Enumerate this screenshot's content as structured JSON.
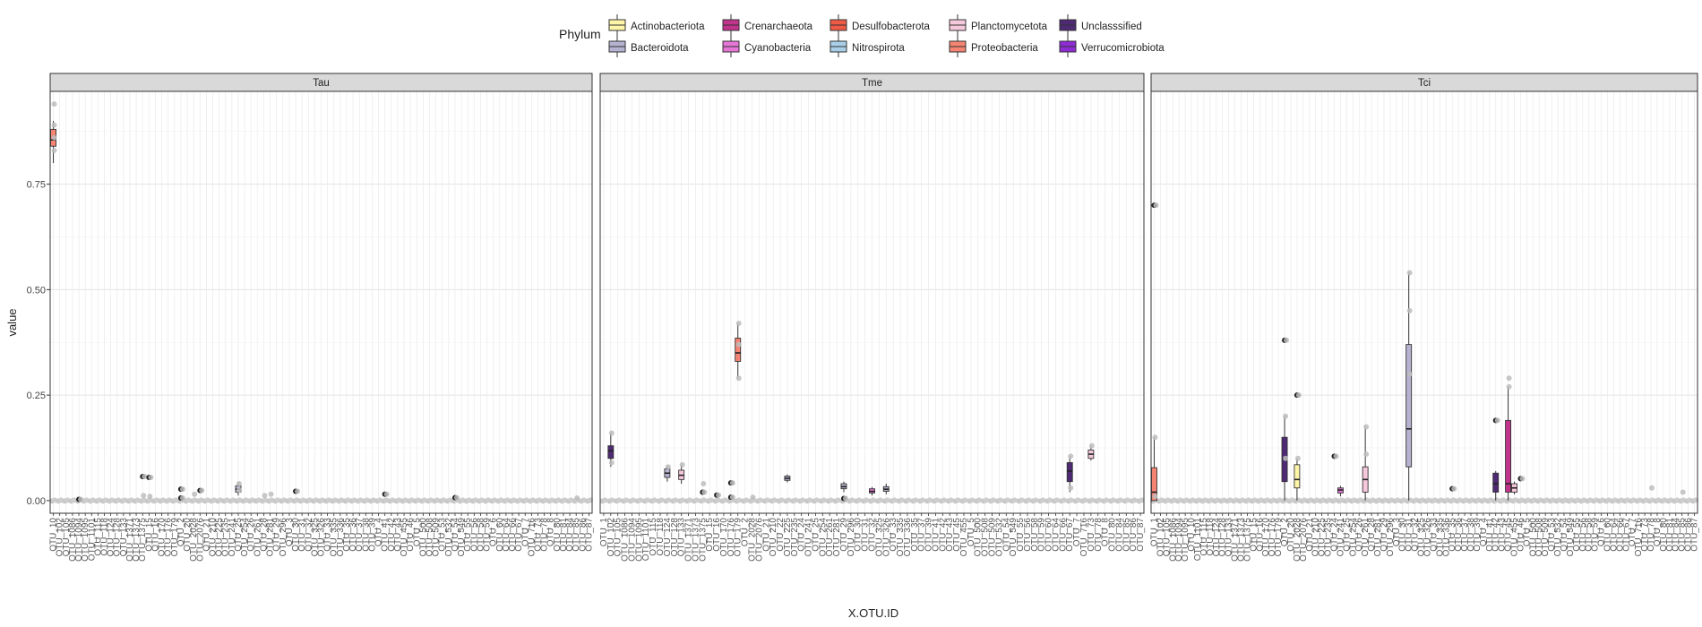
{
  "chart_data": {
    "type": "boxplot",
    "title": "",
    "xlabel": "X.OTU.ID",
    "ylabel": "value",
    "ylim": [
      -0.03,
      0.97
    ],
    "y_ticks": [
      0.0,
      0.25,
      0.5,
      0.75
    ],
    "y_tick_labels": [
      "0.00",
      "0.25",
      "0.50",
      "0.75"
    ],
    "grid": true,
    "legend": {
      "title": "Phylum",
      "placement": "top",
      "entries": [
        {
          "name": "Actinobacteriota",
          "color": "#FFF5A8"
        },
        {
          "name": "Bacteroidota",
          "color": "#B5B3D0"
        },
        {
          "name": "Crenarchaeota",
          "color": "#C2338C"
        },
        {
          "name": "Cyanobacteria",
          "color": "#E576D5"
        },
        {
          "name": "Desulfobacterota",
          "color": "#EE5A45"
        },
        {
          "name": "Nitrospirota",
          "color": "#A9CFE8"
        },
        {
          "name": "Planctomycetota",
          "color": "#F6C8DC"
        },
        {
          "name": "Proteobacteria",
          "color": "#F58473"
        },
        {
          "name": "Unclasssified",
          "color": "#4E2A74"
        },
        {
          "name": "Verrucomicrobiota",
          "color": "#8E2BD4"
        }
      ]
    },
    "panels": [
      {
        "label": "Tau",
        "tick_labels": [
          "OTU_10",
          "OTU_102",
          "OTU_105",
          "OTU_1086",
          "OTU_1094",
          "OTU_1095",
          "OTU_1101",
          "OTU_115",
          "OTU_118",
          "OTU_124",
          "OTU_128",
          "OTU_133",
          "OTU_1371",
          "OTU_1373",
          "OTU_1375",
          "OTU_15",
          "OTU_16",
          "OTU_170",
          "OTU_176",
          "OTU_179",
          "OTU_2",
          "OTU_20",
          "OTU_2028",
          "OTU_2076",
          "OTU_21",
          "OTU_210",
          "OTU_225",
          "OTU_235",
          "OTU_241",
          "OTU_25",
          "OTU_254",
          "OTU_26",
          "OTU_261",
          "OTU_28",
          "OTU_281",
          "OTU_29",
          "OTU_296",
          "OTU_3",
          "OTU_30",
          "OTU_31",
          "OTU_32",
          "OTU_325",
          "OTU_326",
          "OTU_33",
          "OTU_335",
          "OTU_336",
          "OTU_35",
          "OTU_36",
          "OTU_37",
          "OTU_38",
          "OTU_39",
          "OTU_4",
          "OTU_41",
          "OTU_42",
          "OTU_43",
          "OTU_455",
          "OTU_46",
          "OTU_5",
          "OTU_500",
          "OTU_508",
          "OTU_509",
          "OTU_53",
          "OTU_532",
          "OTU_54",
          "OTU_549",
          "OTU_55",
          "OTU_56",
          "OTU_58",
          "OTU_59",
          "OTU_6",
          "OTU_60",
          "OTU_64",
          "OTU_66",
          "OTU_67",
          "OTU_7",
          "OTU_716",
          "OTU_73",
          "OTU_78",
          "OTU_8",
          "OTU_80",
          "OTU_81",
          "OTU_84",
          "OTU_85",
          "OTU_86",
          "OTU_87"
        ],
        "boxes": [
          {
            "index": 0,
            "phylum": "Proteobacteria",
            "q1": 0.84,
            "median": 0.855,
            "q3": 0.88,
            "whisker_low": 0.8,
            "whisker_high": 0.9
          },
          {
            "index": 29,
            "phylum": "Bacteroidota",
            "q1": 0.02,
            "median": 0.027,
            "q3": 0.035,
            "whisker_low": 0.012,
            "whisker_high": 0.045
          }
        ],
        "points": [
          {
            "index": 0,
            "value": 0.94,
            "outlier": false
          },
          {
            "index": 0,
            "value": 0.86,
            "outlier": false
          },
          {
            "index": 0,
            "value": 0.83,
            "outlier": false
          },
          {
            "index": 0,
            "value": 0.89,
            "outlier": false
          },
          {
            "index": 4,
            "value": 0.003,
            "outlier": true
          },
          {
            "index": 14,
            "value": 0.057,
            "outlier": true
          },
          {
            "index": 14,
            "value": 0.012,
            "outlier": false
          },
          {
            "index": 15,
            "value": 0.055,
            "outlier": true
          },
          {
            "index": 15,
            "value": 0.01,
            "outlier": false
          },
          {
            "index": 20,
            "value": 0.027,
            "outlier": true
          },
          {
            "index": 20,
            "value": 0.006,
            "outlier": true
          },
          {
            "index": 22,
            "value": 0.015,
            "outlier": false
          },
          {
            "index": 23,
            "value": 0.024,
            "outlier": true
          },
          {
            "index": 29,
            "value": 0.04,
            "outlier": false
          },
          {
            "index": 29,
            "value": 0.025,
            "outlier": false
          },
          {
            "index": 33,
            "value": 0.012,
            "outlier": false
          },
          {
            "index": 34,
            "value": 0.015,
            "outlier": false
          },
          {
            "index": 38,
            "value": 0.022,
            "outlier": true
          },
          {
            "index": 52,
            "value": 0.015,
            "outlier": true
          },
          {
            "index": 63,
            "value": 0.007,
            "outlier": true
          },
          {
            "index": 82,
            "value": 0.006,
            "outlier": false
          }
        ]
      },
      {
        "label": "Tme",
        "tick_labels": [
          "OTU_1",
          "OTU_102",
          "OTU_105",
          "OTU_1086",
          "OTU_1094",
          "OTU_1095",
          "OTU_1101",
          "OTU_115",
          "OTU_118",
          "OTU_124",
          "OTU_128",
          "OTU_133",
          "OTU_1371",
          "OTU_1373",
          "OTU_1375",
          "OTU_15",
          "OTU_16",
          "OTU_170",
          "OTU_176",
          "OTU_179",
          "OTU_2",
          "OTU_2028",
          "OTU_2076",
          "OTU_21",
          "OTU_210",
          "OTU_22",
          "OTU_225",
          "OTU_235",
          "OTU_24",
          "OTU_241",
          "OTU_25",
          "OTU_254",
          "OTU_261",
          "OTU_281",
          "OTU_29",
          "OTU_296",
          "OTU_30",
          "OTU_31",
          "OTU_32",
          "OTU_325",
          "OTU_326",
          "OTU_33",
          "OTU_335",
          "OTU_336",
          "OTU_35",
          "OTU_37",
          "OTU_39",
          "OTU_41",
          "OTU_42",
          "OTU_43",
          "OTU_45",
          "OTU_455",
          "OTU_5",
          "OTU_500",
          "OTU_508",
          "OTU_509",
          "OTU_532",
          "OTU_54",
          "OTU_549",
          "OTU_55",
          "OTU_56",
          "OTU_58",
          "OTU_59",
          "OTU_60",
          "OTU_64",
          "OTU_66",
          "OTU_67",
          "OTU_7",
          "OTU_716",
          "OTU_73",
          "OTU_78",
          "OTU_8",
          "OTU_80",
          "OTU_84",
          "OTU_85",
          "OTU_86",
          "OTU_87"
        ],
        "boxes": [
          {
            "index": 1,
            "phylum": "Unclasssified",
            "q1": 0.1,
            "median": 0.118,
            "q3": 0.13,
            "whisker_low": 0.08,
            "whisker_high": 0.16
          },
          {
            "index": 9,
            "phylum": "Bacteroidota",
            "q1": 0.055,
            "median": 0.065,
            "q3": 0.075,
            "whisker_low": 0.045,
            "whisker_high": 0.082
          },
          {
            "index": 11,
            "phylum": "Planctomycetota",
            "q1": 0.05,
            "median": 0.06,
            "q3": 0.072,
            "whisker_low": 0.04,
            "whisker_high": 0.085
          },
          {
            "index": 19,
            "phylum": "Proteobacteria",
            "q1": 0.33,
            "median": 0.35,
            "q3": 0.385,
            "whisker_low": 0.29,
            "whisker_high": 0.42
          },
          {
            "index": 26,
            "phylum": "Bacteroidota",
            "q1": 0.048,
            "median": 0.053,
            "q3": 0.058,
            "whisker_low": 0.043,
            "whisker_high": 0.062
          },
          {
            "index": 34,
            "phylum": "Bacteroidota",
            "q1": 0.028,
            "median": 0.033,
            "q3": 0.04,
            "whisker_low": 0.02,
            "whisker_high": 0.045
          },
          {
            "index": 38,
            "phylum": "Cyanobacteria",
            "q1": 0.018,
            "median": 0.022,
            "q3": 0.028,
            "whisker_low": 0.012,
            "whisker_high": 0.032
          },
          {
            "index": 40,
            "phylum": "Bacteroidota",
            "q1": 0.022,
            "median": 0.027,
            "q3": 0.033,
            "whisker_low": 0.015,
            "whisker_high": 0.04
          },
          {
            "index": 66,
            "phylum": "Unclasssified",
            "q1": 0.045,
            "median": 0.07,
            "q3": 0.09,
            "whisker_low": 0.02,
            "whisker_high": 0.105
          },
          {
            "index": 69,
            "phylum": "Planctomycetota",
            "q1": 0.1,
            "median": 0.11,
            "q3": 0.12,
            "whisker_low": 0.095,
            "whisker_high": 0.13
          }
        ],
        "points": [
          {
            "index": 1,
            "value": 0.16,
            "outlier": false
          },
          {
            "index": 1,
            "value": 0.09,
            "outlier": false
          },
          {
            "index": 9,
            "value": 0.08,
            "outlier": false
          },
          {
            "index": 11,
            "value": 0.085,
            "outlier": false
          },
          {
            "index": 14,
            "value": 0.04,
            "outlier": false
          },
          {
            "index": 14,
            "value": 0.02,
            "outlier": true
          },
          {
            "index": 16,
            "value": 0.013,
            "outlier": true
          },
          {
            "index": 18,
            "value": 0.042,
            "outlier": true
          },
          {
            "index": 18,
            "value": 0.008,
            "outlier": true
          },
          {
            "index": 19,
            "value": 0.42,
            "outlier": false
          },
          {
            "index": 19,
            "value": 0.29,
            "outlier": false
          },
          {
            "index": 19,
            "value": 0.37,
            "outlier": false
          },
          {
            "index": 21,
            "value": 0.008,
            "outlier": false
          },
          {
            "index": 34,
            "value": 0.005,
            "outlier": true
          },
          {
            "index": 66,
            "value": 0.105,
            "outlier": false
          },
          {
            "index": 66,
            "value": 0.03,
            "outlier": false
          },
          {
            "index": 69,
            "value": 0.13,
            "outlier": false
          }
        ]
      },
      {
        "label": "Tci",
        "tick_labels": [
          "OTU_1",
          "OTU_102",
          "OTU_105",
          "OTU_1086",
          "OTU_1094",
          "OTU_1095",
          "OTU_10",
          "OTU_1101",
          "OTU_115",
          "OTU_118",
          "OTU_124",
          "OTU_128",
          "OTU_133",
          "OTU_1371",
          "OTU_1373",
          "OTU_1375",
          "OTU_15",
          "OTU_16",
          "OTU_170",
          "OTU_176",
          "OTU_179",
          "OTU_2",
          "OTU_20",
          "OTU_2028",
          "OTU_2076",
          "OTU_21",
          "OTU_210",
          "OTU_225",
          "OTU_235",
          "OTU_24",
          "OTU_241",
          "OTU_25",
          "OTU_254",
          "OTU_26",
          "OTU_261",
          "OTU_28",
          "OTU_281",
          "OTU_29",
          "OTU_296",
          "OTU_3",
          "OTU_30",
          "OTU_31",
          "OTU_32",
          "OTU_325",
          "OTU_326",
          "OTU_33",
          "OTU_335",
          "OTU_336",
          "OTU_35",
          "OTU_36",
          "OTU_37",
          "OTU_38",
          "OTU_39",
          "OTU_4",
          "OTU_41",
          "OTU_42",
          "OTU_43",
          "OTU_45",
          "OTU_455",
          "OTU_46",
          "OTU_5",
          "OTU_500",
          "OTU_508",
          "OTU_509",
          "OTU_53",
          "OTU_532",
          "OTU_54",
          "OTU_549",
          "OTU_55",
          "OTU_56",
          "OTU_58",
          "OTU_59",
          "OTU_6",
          "OTU_60",
          "OTU_64",
          "OTU_66",
          "OTU_67",
          "OTU_7",
          "OTU_716",
          "OTU_73",
          "OTU_78",
          "OTU_8",
          "OTU_80",
          "OTU_81",
          "OTU_84",
          "OTU_85",
          "OTU_86",
          "OTU_87"
        ],
        "boxes": [
          {
            "index": 0,
            "phylum": "Proteobacteria",
            "q1": 0.0,
            "median": 0.02,
            "q3": 0.078,
            "whisker_low": 0.0,
            "whisker_high": 0.15
          },
          {
            "index": 21,
            "phylum": "Unclasssified",
            "q1": 0.045,
            "median": 0.1,
            "q3": 0.15,
            "whisker_low": 0.0,
            "whisker_high": 0.2
          },
          {
            "index": 23,
            "phylum": "Actinobacteriota",
            "q1": 0.03,
            "median": 0.05,
            "q3": 0.085,
            "whisker_low": 0.0,
            "whisker_high": 0.1
          },
          {
            "index": 30,
            "phylum": "Cyanobacteria",
            "q1": 0.018,
            "median": 0.025,
            "q3": 0.03,
            "whisker_low": 0.01,
            "whisker_high": 0.035
          },
          {
            "index": 34,
            "phylum": "Planctomycetota",
            "q1": 0.02,
            "median": 0.05,
            "q3": 0.08,
            "whisker_low": 0.0,
            "whisker_high": 0.175
          },
          {
            "index": 41,
            "phylum": "Bacteroidota",
            "q1": 0.08,
            "median": 0.17,
            "q3": 0.37,
            "whisker_low": 0.0,
            "whisker_high": 0.54
          },
          {
            "index": 55,
            "phylum": "Unclasssified",
            "q1": 0.02,
            "median": 0.04,
            "q3": 0.065,
            "whisker_low": 0.0,
            "whisker_high": 0.07
          },
          {
            "index": 57,
            "phylum": "Crenarchaeota",
            "q1": 0.02,
            "median": 0.04,
            "q3": 0.19,
            "whisker_low": 0.0,
            "whisker_high": 0.27
          },
          {
            "index": 58,
            "phylum": "Planctomycetota",
            "q1": 0.02,
            "median": 0.03,
            "q3": 0.04,
            "whisker_low": 0.015,
            "whisker_high": 0.045
          }
        ],
        "points": [
          {
            "index": 0,
            "value": 0.7,
            "outlier": true
          },
          {
            "index": 0,
            "value": 0.15,
            "outlier": false
          },
          {
            "index": 0,
            "value": 0.01,
            "outlier": false
          },
          {
            "index": 21,
            "value": 0.38,
            "outlier": true
          },
          {
            "index": 21,
            "value": 0.1,
            "outlier": false
          },
          {
            "index": 21,
            "value": 0.2,
            "outlier": false
          },
          {
            "index": 23,
            "value": 0.25,
            "outlier": true
          },
          {
            "index": 23,
            "value": 0.1,
            "outlier": false
          },
          {
            "index": 29,
            "value": 0.105,
            "outlier": true
          },
          {
            "index": 34,
            "value": 0.175,
            "outlier": false
          },
          {
            "index": 34,
            "value": 0.11,
            "outlier": false
          },
          {
            "index": 41,
            "value": 0.54,
            "outlier": false
          },
          {
            "index": 41,
            "value": 0.45,
            "outlier": false
          },
          {
            "index": 41,
            "value": 0.3,
            "outlier": false
          },
          {
            "index": 48,
            "value": 0.028,
            "outlier": true
          },
          {
            "index": 55,
            "value": 0.19,
            "outlier": true
          },
          {
            "index": 57,
            "value": 0.27,
            "outlier": false
          },
          {
            "index": 57,
            "value": 0.29,
            "outlier": false
          },
          {
            "index": 59,
            "value": 0.052,
            "outlier": true
          },
          {
            "index": 80,
            "value": 0.03,
            "outlier": false
          },
          {
            "index": 85,
            "value": 0.02,
            "outlier": false
          }
        ]
      }
    ]
  }
}
